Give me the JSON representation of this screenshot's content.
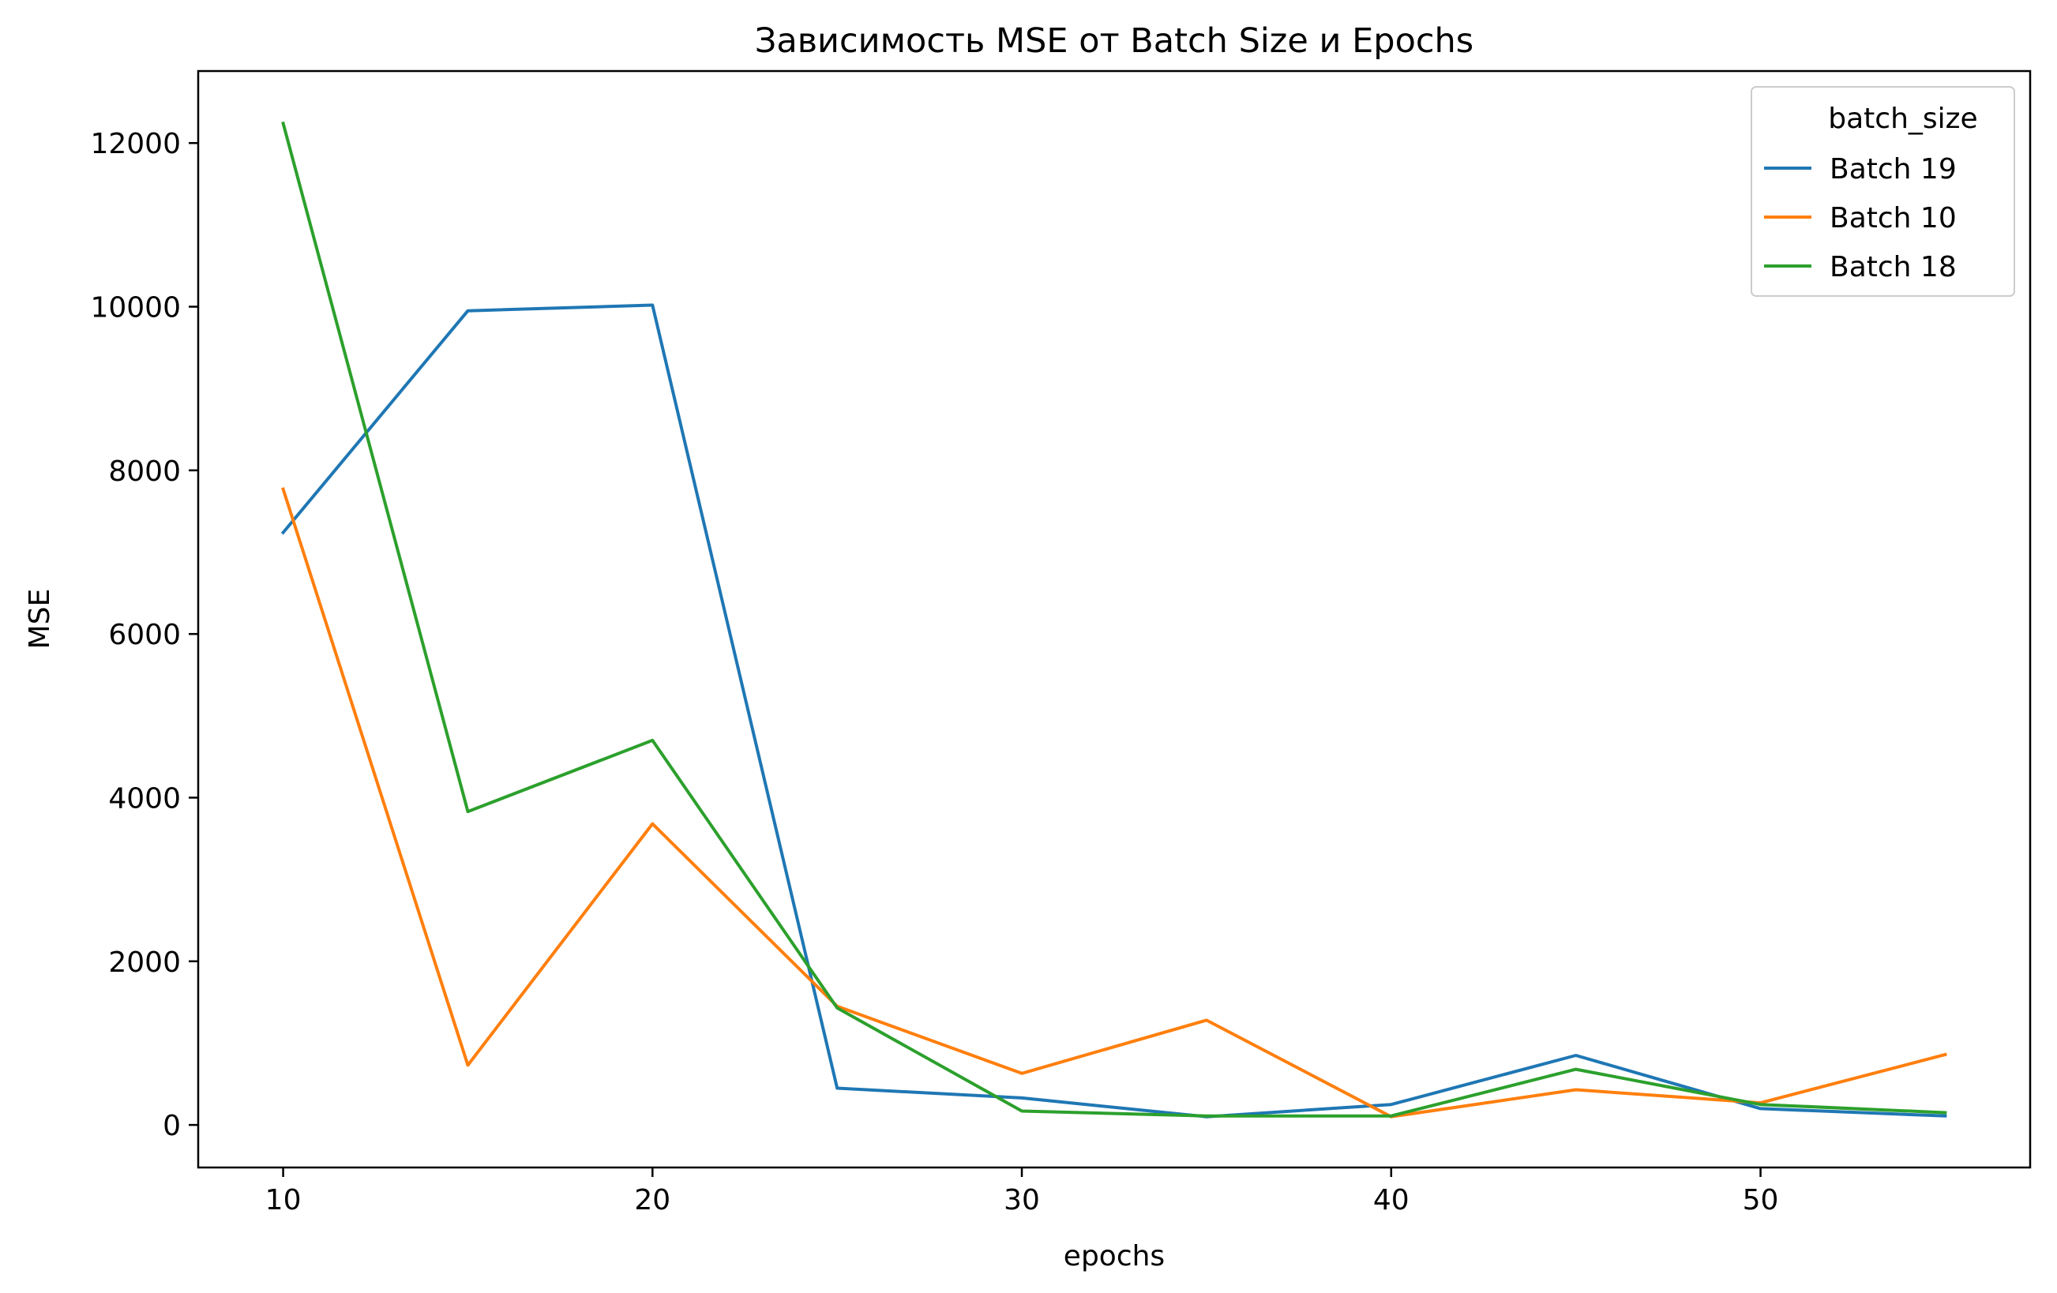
{
  "chart_data": {
    "type": "line",
    "title": "Зависимость MSE от Batch Size и Epochs",
    "xlabel": "epochs",
    "ylabel": "MSE",
    "xlim": [
      7.7,
      57.3
    ],
    "ylim": [
      -520,
      12880
    ],
    "xticks": [
      10,
      20,
      30,
      40,
      50
    ],
    "yticks": [
      0,
      2000,
      4000,
      6000,
      8000,
      10000,
      12000
    ],
    "grid": false,
    "legend": {
      "title": "batch_size",
      "placement": "top-right"
    },
    "x": [
      10,
      15,
      20,
      25,
      30,
      35,
      40,
      45,
      50,
      55
    ],
    "series": [
      {
        "name": "Batch 19",
        "color": "#1f77b4",
        "values": [
          7240,
          9950,
          10020,
          450,
          330,
          100,
          250,
          850,
          200,
          110
        ]
      },
      {
        "name": "Batch 10",
        "color": "#ff7f0e",
        "values": [
          7770,
          730,
          3680,
          1450,
          630,
          1280,
          100,
          430,
          270,
          860
        ]
      },
      {
        "name": "Batch 18",
        "color": "#2ca02c",
        "values": [
          12240,
          3830,
          4700,
          1430,
          170,
          110,
          110,
          680,
          250,
          150
        ]
      }
    ]
  }
}
